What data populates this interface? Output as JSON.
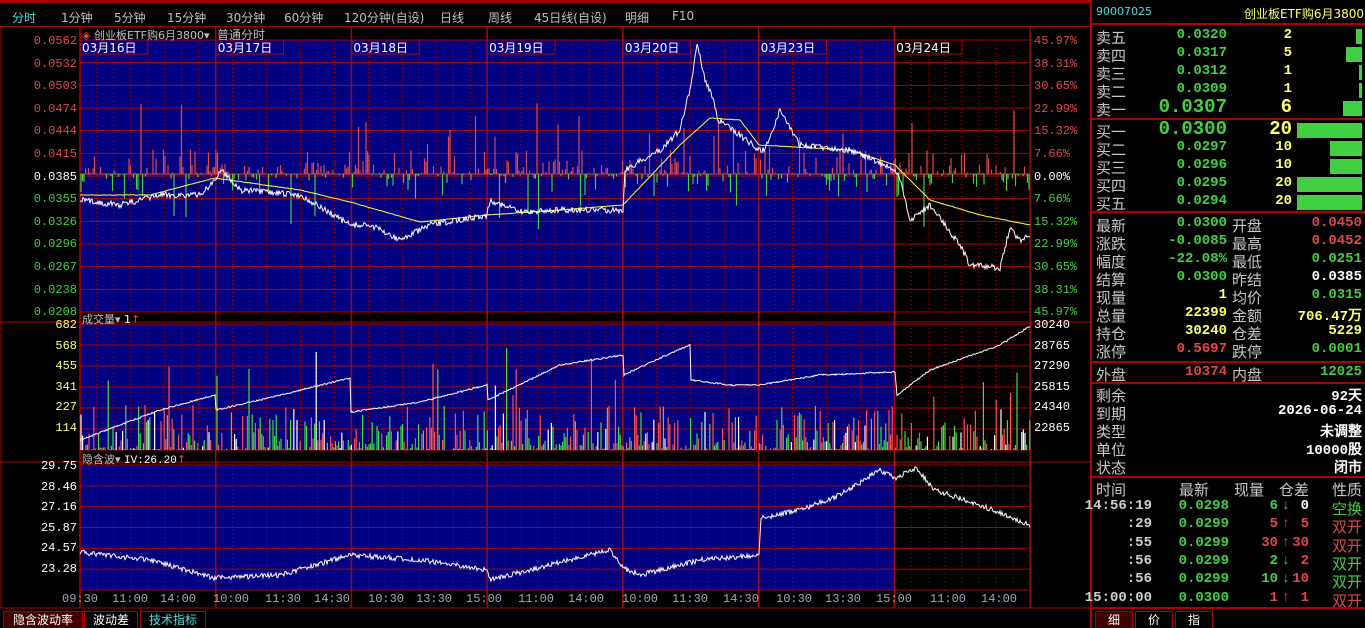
{
  "toolbar": {
    "tabs": [
      "分时",
      "1分钟",
      "5分钟",
      "15分钟",
      "30分钟",
      "60分钟",
      "120分钟(自设)",
      "日线",
      "周线",
      "45日线(自设)",
      "明细",
      "F10"
    ],
    "active": 0
  },
  "price_panel": {
    "instrument": "创业板ETF购6月3800",
    "mode": "普通分时",
    "dates": [
      "03月16日",
      "03月17日",
      "03月18日",
      "03月19日",
      "03月20日",
      "03月23日",
      "03月24日"
    ],
    "left_labels": [
      "0.0562",
      "0.0532",
      "0.0503",
      "0.0474",
      "0.0444",
      "0.0415",
      "0.0385",
      "0.0355",
      "0.0326",
      "0.0296",
      "0.0267",
      "0.0238",
      "0.0208"
    ],
    "right_labels": [
      "45.97%",
      "38.31%",
      "30.65%",
      "22.99%",
      "15.32%",
      "7.66%",
      "0.00%",
      "7.66%",
      "15.32%",
      "22.99%",
      "30.65%",
      "38.31%",
      "45.97%"
    ]
  },
  "volume_panel": {
    "title": "成交量",
    "value": "1",
    "left_labels": [
      "682",
      "568",
      "455",
      "341",
      "227",
      "114"
    ],
    "right_labels": [
      "30240",
      "28765",
      "27290",
      "25815",
      "24340",
      "22865"
    ]
  },
  "iv_panel": {
    "title": "隐含波",
    "value": "IV:26.20",
    "left_labels": [
      "29.75",
      "28.46",
      "27.16",
      "25.87",
      "24.57",
      "23.28"
    ]
  },
  "time_axis": [
    "09:30",
    "11:00",
    "14:00",
    "10:00",
    "11:30",
    "14:30",
    "10:30",
    "13:30",
    "15:00",
    "11:00",
    "14:00",
    "10:00",
    "11:30",
    "14:30",
    "10:30",
    "13:30",
    "15:00",
    "11:00",
    "14:00"
  ],
  "bottom_tabs": [
    "隐含波动率",
    "波动差",
    "技术指标"
  ],
  "quote": {
    "code": "90007025",
    "name": "创业板ETF购6月3800",
    "asks": [
      {
        "label": "卖五",
        "price": "0.0320",
        "vol": "2",
        "pct": 0.1
      },
      {
        "label": "卖四",
        "price": "0.0317",
        "vol": "5",
        "pct": 0.25
      },
      {
        "label": "卖三",
        "price": "0.0312",
        "vol": "1",
        "pct": 0.05
      },
      {
        "label": "卖二",
        "price": "0.0309",
        "vol": "1",
        "pct": 0.05
      },
      {
        "label": "卖一",
        "price": "0.0307",
        "vol": "6",
        "pct": 0.3
      }
    ],
    "bids": [
      {
        "label": "买一",
        "price": "0.0300",
        "vol": "20",
        "pct": 1
      },
      {
        "label": "买二",
        "price": "0.0297",
        "vol": "10",
        "pct": 0.5
      },
      {
        "label": "买三",
        "price": "0.0296",
        "vol": "10",
        "pct": 0.5
      },
      {
        "label": "买四",
        "price": "0.0295",
        "vol": "20",
        "pct": 1
      },
      {
        "label": "买五",
        "price": "0.0294",
        "vol": "20",
        "pct": 1
      }
    ],
    "stats": [
      [
        "最新",
        "0.0300",
        "g",
        "开盘",
        "0.0450",
        "r"
      ],
      [
        "涨跌",
        "-0.0085",
        "g",
        "最高",
        "0.0452",
        "r"
      ],
      [
        "幅度",
        "-22.08%",
        "g",
        "最低",
        "0.0251",
        "g"
      ],
      [
        "结算",
        "0.0300",
        "g",
        "昨结",
        "0.0385",
        "w"
      ],
      [
        "现量",
        "1",
        "y",
        "均价",
        "0.0315",
        "g"
      ],
      [
        "总量",
        "22399",
        "y",
        "金额",
        "706.47万",
        "y"
      ],
      [
        "持仓",
        "30240",
        "y",
        "仓差",
        "5229",
        "y"
      ],
      [
        "涨停",
        "0.5697",
        "r",
        "跌停",
        "0.0001",
        "g"
      ]
    ],
    "outer": {
      "label": "外盘",
      "value": "10374",
      "label2": "内盘",
      "value2": "12025"
    },
    "info": [
      [
        "剩余",
        "92天"
      ],
      [
        "到期",
        "2026-06-24"
      ],
      [
        "类型",
        "未调整"
      ],
      [
        "单位",
        "10000股"
      ],
      [
        "状态",
        "闭市"
      ]
    ],
    "ticks_header": [
      "时间",
      "最新",
      "现量",
      "仓差",
      "性质"
    ],
    "ticks": [
      [
        "14:56:19",
        "0.0298",
        "6",
        "down",
        "0",
        "空换",
        "g"
      ],
      [
        ":29",
        "0.0299",
        "5",
        "up",
        "5",
        "双开",
        "r"
      ],
      [
        ":55",
        "0.0299",
        "30",
        "up",
        "30",
        "双开",
        "r"
      ],
      [
        ":56",
        "0.0299",
        "2",
        "down",
        "2",
        "双开",
        "g"
      ],
      [
        ":56",
        "0.0299",
        "10",
        "down",
        "10",
        "双开",
        "g"
      ],
      [
        "15:00:00",
        "0.0300",
        "1",
        "up",
        "1",
        "双开",
        "r"
      ]
    ],
    "tabs": [
      "细",
      "价",
      "指"
    ]
  },
  "colors": {
    "up": "#e04848",
    "down": "#40d040",
    "grid": "#b00000",
    "plot_bg": "#000080",
    "accent": "#40e0e0"
  }
}
